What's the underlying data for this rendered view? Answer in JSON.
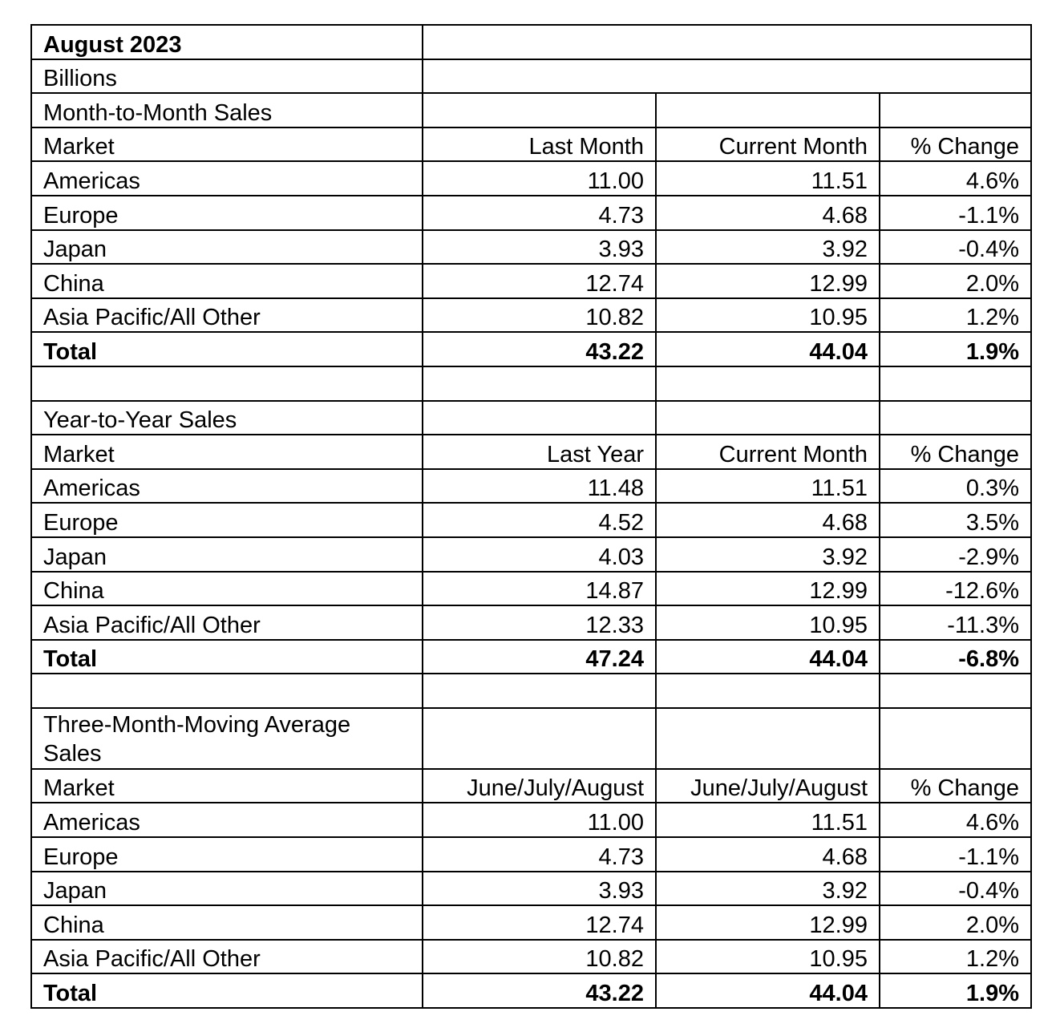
{
  "title": "August 2023",
  "units": "Billions",
  "sections": [
    {
      "title": "Month-to-Month Sales",
      "header": [
        "Market",
        "Last Month",
        "Current Month",
        "% Change"
      ],
      "rows": [
        [
          "Americas",
          "11.00",
          "11.51",
          "4.6%"
        ],
        [
          "Europe",
          "4.73",
          "4.68",
          "-1.1%"
        ],
        [
          "Japan",
          "3.93",
          "3.92",
          "-0.4%"
        ],
        [
          "China",
          "12.74",
          "12.99",
          "2.0%"
        ],
        [
          "Asia Pacific/All Other",
          "10.82",
          "10.95",
          "1.2%"
        ]
      ],
      "total": [
        "Total",
        "43.22",
        "44.04",
        "1.9%"
      ]
    },
    {
      "title": "Year-to-Year Sales",
      "header": [
        "Market",
        "Last Year",
        "Current Month",
        "% Change"
      ],
      "rows": [
        [
          "Americas",
          "11.48",
          "11.51",
          "0.3%"
        ],
        [
          "Europe",
          "4.52",
          "4.68",
          "3.5%"
        ],
        [
          "Japan",
          "4.03",
          "3.92",
          "-2.9%"
        ],
        [
          "China",
          "14.87",
          "12.99",
          "-12.6%"
        ],
        [
          "Asia Pacific/All Other",
          "12.33",
          "10.95",
          "-11.3%"
        ]
      ],
      "total": [
        "Total",
        "47.24",
        "44.04",
        "-6.8%"
      ]
    },
    {
      "title": "Three-Month-Moving Average Sales",
      "header": [
        "Market",
        "June/July/August",
        "June/July/August",
        "% Change"
      ],
      "rows": [
        [
          "Americas",
          "11.00",
          "11.51",
          "4.6%"
        ],
        [
          "Europe",
          "4.73",
          "4.68",
          "-1.1%"
        ],
        [
          "Japan",
          "3.93",
          "3.92",
          "-0.4%"
        ],
        [
          "China",
          "12.74",
          "12.99",
          "2.0%"
        ],
        [
          "Asia Pacific/All Other",
          "10.82",
          "10.95",
          "1.2%"
        ]
      ],
      "total": [
        "Total",
        "43.22",
        "44.04",
        "1.9%"
      ]
    }
  ]
}
